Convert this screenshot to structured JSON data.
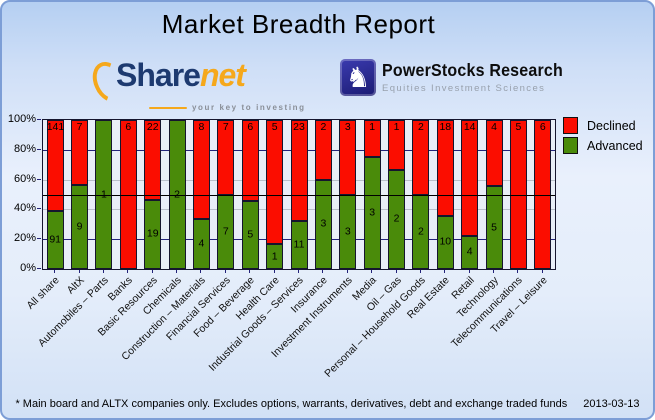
{
  "window": {
    "title": "Market Breadth Report"
  },
  "logos": {
    "sharenet": {
      "text_primary": "Share",
      "text_secondary": "net",
      "tagline": "your key to investing"
    },
    "powerstocks": {
      "name": "PowerStocks  Research",
      "subtitle": "Equities Investment Sciences",
      "icon": "knight-chess-icon",
      "icon_glyph": "♞"
    }
  },
  "chart_data": {
    "type": "bar",
    "stacked": true,
    "units": "percent_of_total",
    "categories": [
      "All share",
      "AltX",
      "Automobiles – Parts",
      "Banks",
      "Basic Resources",
      "Chemicals",
      "Construction – Materials",
      "Financial Services",
      "Food – Beverage",
      "Health Care",
      "Industrial Goods – Services",
      "Insurance",
      "Investment Instruments",
      "Media",
      "Oil – Gas",
      "Personal – Household Goods",
      "Real Estate",
      "Retail",
      "Technology",
      "Telecommunications",
      "Travel – Leisure"
    ],
    "series": [
      {
        "name": "Declined",
        "color": "#fb0d00",
        "values": [
          141,
          7,
          0,
          6,
          22,
          0,
          8,
          7,
          6,
          5,
          23,
          2,
          3,
          1,
          1,
          2,
          18,
          14,
          4,
          5,
          6
        ]
      },
      {
        "name": "Advanced",
        "color": "#4a8b0a",
        "values": [
          91,
          9,
          1,
          0,
          19,
          2,
          4,
          7,
          5,
          1,
          11,
          3,
          3,
          3,
          2,
          2,
          10,
          4,
          5,
          0,
          0
        ]
      }
    ],
    "yticks": [
      "0%",
      "20%",
      "40%",
      "60%",
      "80%",
      "100%"
    ],
    "ylim": [
      0,
      100
    ],
    "reference_line_percent": 50,
    "grid": "on",
    "legend_position": "top-right"
  },
  "footer": {
    "note": "* Main board and ALTX companies only. Excludes options, warrants, derivatives, debt and exchange traded funds",
    "date": "2013-03-13"
  },
  "colors": {
    "declined": "#fb0d00",
    "advanced": "#4a8b0a",
    "grid_major": "#23237a",
    "grid_minor": "#b9c0ca",
    "reference_line": "#000000",
    "plot_background": "#e8eef7",
    "frame_border": "#7d9ed6"
  }
}
